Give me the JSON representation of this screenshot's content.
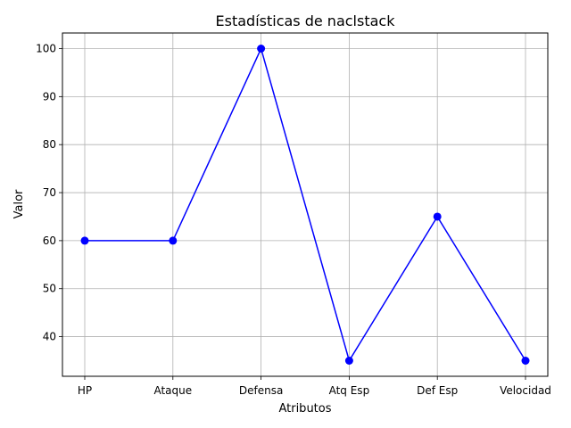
{
  "chart_data": {
    "type": "line",
    "title": "Estadísticas de naclstack",
    "xlabel": "Atributos",
    "ylabel": "Valor",
    "categories": [
      "HP",
      "Ataque",
      "Defensa",
      "Atq Esp",
      "Def Esp",
      "Velocidad"
    ],
    "series": [
      {
        "values": [
          60,
          60,
          100,
          35,
          65,
          35
        ],
        "color": "#0000ff",
        "marker": "circle"
      }
    ],
    "yticks": [
      "40",
      "50",
      "60",
      "70",
      "80",
      "90",
      "100"
    ],
    "ylim": [
      31.75,
      103.25
    ],
    "grid": true,
    "legend": "none"
  }
}
